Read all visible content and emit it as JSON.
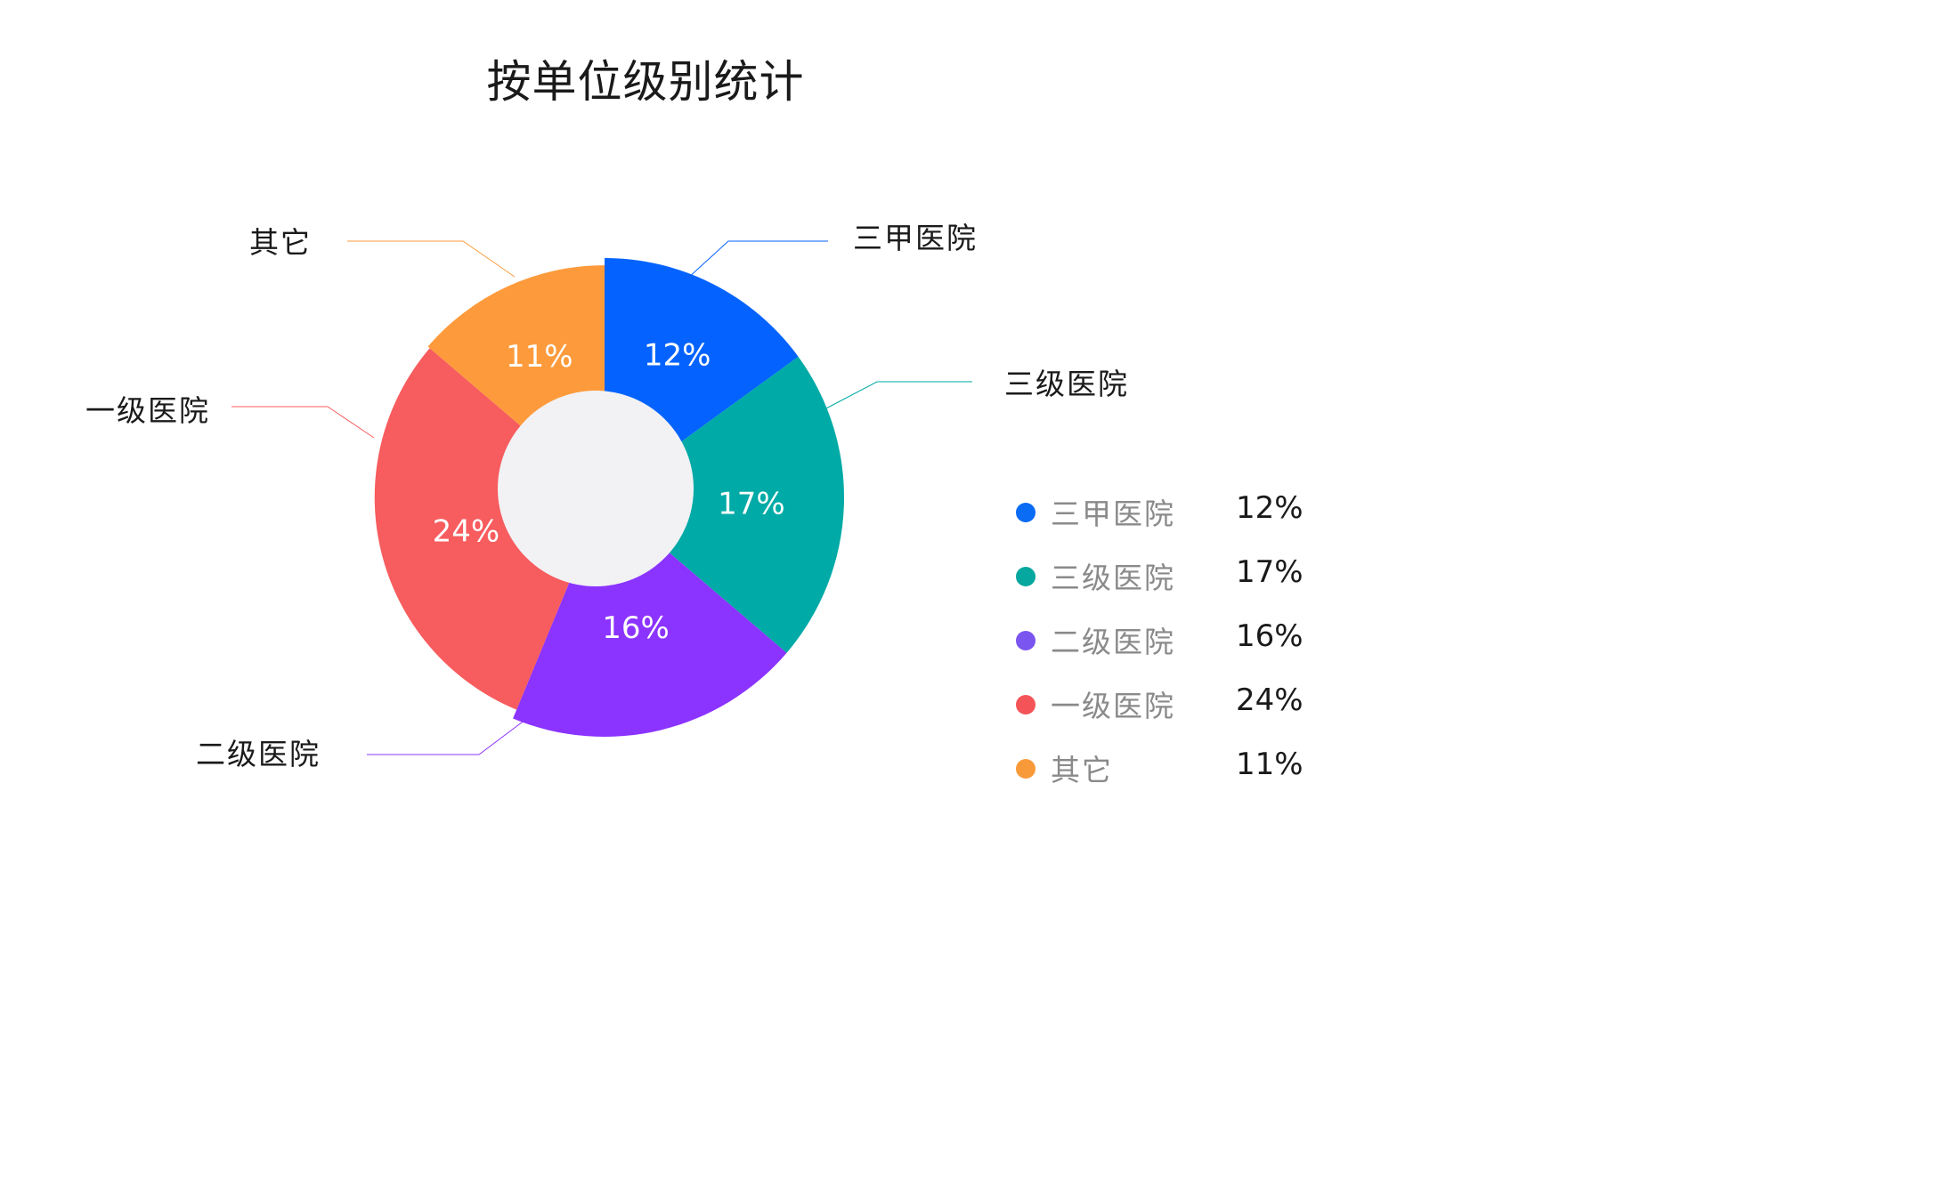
{
  "chart_data": {
    "type": "pie",
    "title": "按单位级别统计",
    "categories": [
      "三甲医院",
      "三级医院",
      "二级医院",
      "一级医院",
      "其它"
    ],
    "values": [
      12,
      17,
      16,
      24,
      11
    ],
    "value_labels": [
      "12%",
      "17%",
      "16%",
      "24%",
      "11%"
    ],
    "colors": [
      "#0463FE",
      "#00AAA6",
      "#8B33FF",
      "#F75C5E",
      "#FD9B3C"
    ],
    "legend_colors": [
      "#0A6BF5",
      "#06A79E",
      "#7A55F0",
      "#F45458",
      "#F99A3A"
    ],
    "donut": true,
    "legend_position": "right",
    "hole_color": "#F2F2F5"
  }
}
